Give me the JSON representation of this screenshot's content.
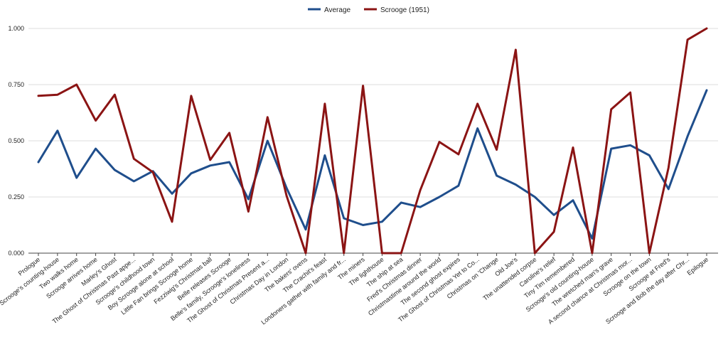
{
  "colors": {
    "average": "#1f4e8c",
    "scrooge": "#8b1414"
  },
  "chart_data": {
    "type": "line",
    "title": "",
    "xlabel": "",
    "ylabel": "",
    "ylim": [
      0,
      1
    ],
    "yticks": [
      "0.000",
      "0.250",
      "0.500",
      "0.750",
      "1.000"
    ],
    "legend_position": "top-center",
    "grid": true,
    "categories": [
      "Prologue",
      "Scrooge's counting-house",
      "Two walks home",
      "Scrooge arrives home",
      "Marley's Ghost",
      "The Ghost of Christmas Past appe...",
      "Scrooge's childhood town",
      "Boy Scrooge alone at school",
      "Little Fan brings Scrooge home",
      "Fezziwig's Christmas ball",
      "Belle releases Scrooge",
      "Belle's family, Scrooge's loneliness",
      "The Ghost of Christmas Present a...",
      "Christmas Day in London",
      "The bakers' ovens",
      "The Crachit's feast",
      "Londoners gather with family and fr...",
      "The miners",
      "The lighthouse",
      "The ship at sea",
      "Fred's Christmas dinner",
      "Christmastime around the world",
      "The second ghost expires",
      "The Ghost of Christmas Yet to Co...",
      "Christmas on 'Change",
      "Old Joe's",
      "The unattended corpse",
      "Caroline's relief",
      "Tiny Tim remembered",
      "Scrooge's old counting-house",
      "The wretched man's grave",
      "A second chance at Christmas mor...",
      "Scrooge on the town",
      "Scrooge at Fred's",
      "Scrooge and Bob the day after Chr...",
      "Epilogue"
    ],
    "series": [
      {
        "name": "Average",
        "values": [
          0.405,
          0.545,
          0.335,
          0.465,
          0.37,
          0.32,
          0.365,
          0.265,
          0.355,
          0.39,
          0.405,
          0.24,
          0.5,
          0.29,
          0.105,
          0.435,
          0.155,
          0.125,
          0.14,
          0.225,
          0.205,
          0.25,
          0.3,
          0.555,
          0.345,
          0.305,
          0.25,
          0.17,
          0.235,
          0.065,
          0.465,
          0.48,
          0.435,
          0.285,
          0.52,
          0.725
        ]
      },
      {
        "name": "Scrooge (1951)",
        "values": [
          0.7,
          0.705,
          0.75,
          0.59,
          0.705,
          0.42,
          0.36,
          0.14,
          0.7,
          0.415,
          0.535,
          0.185,
          0.605,
          0.255,
          0.0,
          0.665,
          0.0,
          0.745,
          0.0,
          0.0,
          0.28,
          0.495,
          0.44,
          0.665,
          0.46,
          0.905,
          0.0,
          0.095,
          0.47,
          0.0,
          0.64,
          0.715,
          0.0,
          0.38,
          0.95,
          1.0
        ]
      }
    ]
  }
}
